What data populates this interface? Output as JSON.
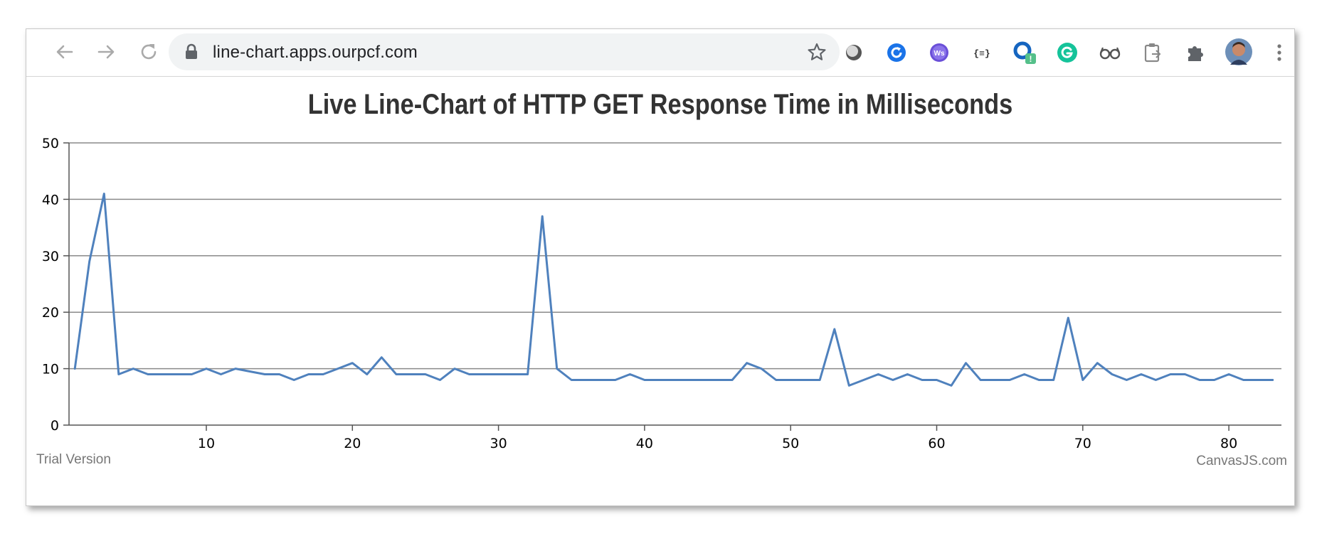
{
  "browser": {
    "url": "line-chart.apps.ourpcf.com",
    "extensions": [
      "shadow-ext-icon",
      "refresh-ext-icon",
      "ws-ext-icon",
      "json-ext-icon",
      "circle-ext-icon",
      "grammarly-icon",
      "glasses-icon",
      "clipboard-icon",
      "puzzle-icon",
      "avatar",
      "menu-icon"
    ],
    "badge_text": "!"
  },
  "chart_data": {
    "type": "line",
    "title": "Live Line-Chart of HTTP GET Response Time in Milliseconds",
    "xlabel": "",
    "ylabel": "",
    "ylim": [
      0,
      50
    ],
    "xlim": [
      0.6,
      83.6
    ],
    "yticks": [
      0,
      10,
      20,
      30,
      40,
      50
    ],
    "xticks": [
      10,
      20,
      30,
      40,
      50,
      60,
      70,
      80
    ],
    "grid": true,
    "color": "#4f81bd",
    "x": [
      1,
      2,
      3,
      4,
      5,
      6,
      7,
      8,
      9,
      10,
      11,
      12,
      13,
      14,
      15,
      16,
      17,
      18,
      19,
      20,
      21,
      22,
      23,
      24,
      25,
      26,
      27,
      28,
      29,
      30,
      31,
      32,
      33,
      34,
      35,
      36,
      37,
      38,
      39,
      40,
      41,
      42,
      43,
      44,
      45,
      46,
      47,
      48,
      49,
      50,
      51,
      52,
      53,
      54,
      55,
      56,
      57,
      58,
      59,
      60,
      61,
      62,
      63,
      64,
      65,
      66,
      67,
      68,
      69,
      70,
      71,
      72,
      73,
      74,
      75,
      76,
      77,
      78,
      79,
      80,
      81,
      82,
      83
    ],
    "series": [
      {
        "values": [
          10,
          29,
          41,
          9,
          10,
          9,
          9,
          9,
          9,
          10,
          9,
          10,
          9.5,
          9,
          9,
          8,
          9,
          9,
          10,
          11,
          9,
          12,
          9,
          9,
          9,
          8,
          10,
          9,
          9,
          9,
          9,
          9,
          37,
          10,
          8,
          8,
          8,
          8,
          9,
          8,
          8,
          8,
          8,
          8,
          8,
          8,
          11,
          10,
          8,
          8,
          8,
          8,
          17,
          7,
          8,
          9,
          8,
          9,
          8,
          8,
          7,
          11,
          8,
          8,
          8,
          9,
          8,
          8,
          19,
          8,
          11,
          9,
          8,
          9,
          8,
          9,
          9,
          8,
          8,
          9,
          8,
          8,
          8
        ]
      }
    ],
    "watermark_left": "Trial Version",
    "watermark_right": "CanvasJS.com"
  }
}
